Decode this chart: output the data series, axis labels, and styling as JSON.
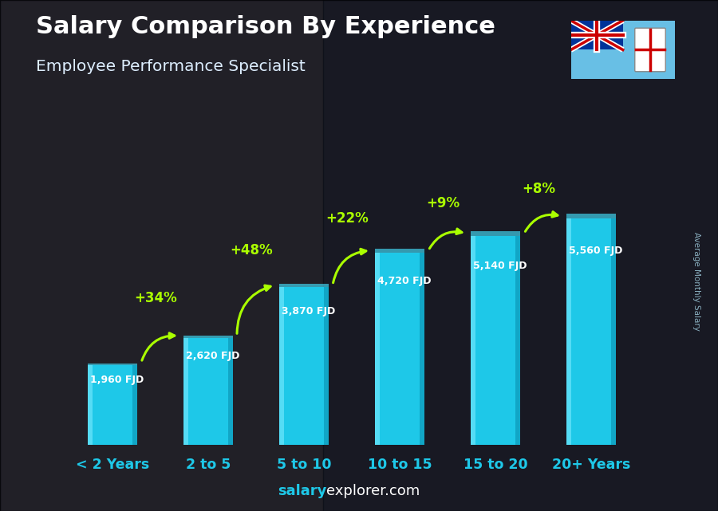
{
  "title": "Salary Comparison By Experience",
  "subtitle": "Employee Performance Specialist",
  "categories": [
    "< 2 Years",
    "2 to 5",
    "5 to 10",
    "10 to 15",
    "15 to 20",
    "20+ Years"
  ],
  "values": [
    1960,
    2620,
    3870,
    4720,
    5140,
    5560
  ],
  "bar_color_main": "#1ec8e8",
  "bar_color_left": "#55dcf5",
  "bar_color_right": "#0fa0c0",
  "bar_color_top": "#40d0ec",
  "bg_color": "#1a1f2e",
  "title_color": "#ffffff",
  "subtitle_color": "#ddeeff",
  "value_label_color": "#ffffff",
  "xticklabel_color": "#1ec8e8",
  "value_labels": [
    "1,960 FJD",
    "2,620 FJD",
    "3,870 FJD",
    "4,720 FJD",
    "5,140 FJD",
    "5,560 FJD"
  ],
  "pct_labels": [
    "+34%",
    "+48%",
    "+22%",
    "+9%",
    "+8%"
  ],
  "pct_color": "#aaff00",
  "ylabel_text": "Average Monthly Salary",
  "footer_bold": "salary",
  "footer_normal": "explorer.com",
  "footer_bold_color": "#1ec8e8",
  "footer_normal_color": "#ffffff",
  "ylim": [
    0,
    7800
  ],
  "xlim": [
    -0.65,
    5.65
  ]
}
